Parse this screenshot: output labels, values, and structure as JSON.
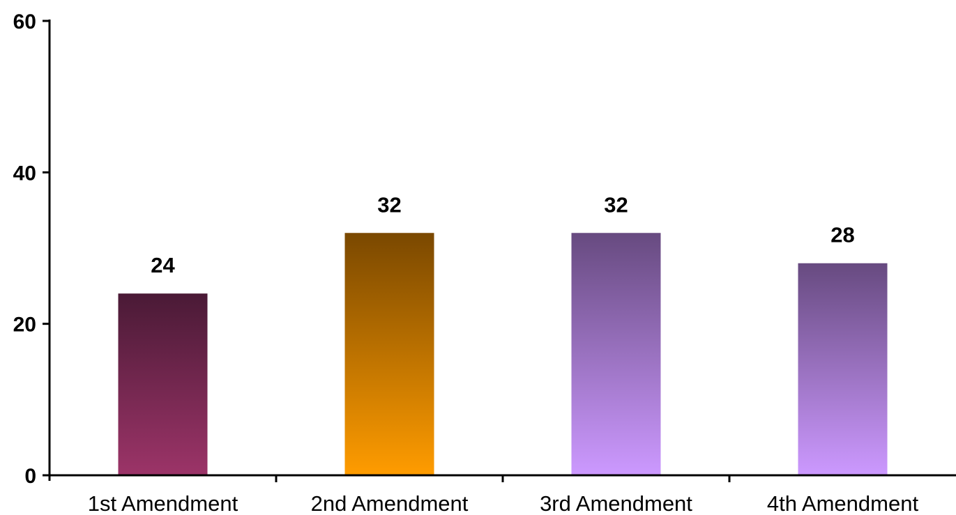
{
  "chart_data": {
    "type": "bar",
    "categories": [
      "1st Amendment",
      "2nd Amendment",
      "3rd Amendment",
      "4th Amendment"
    ],
    "values": [
      24,
      32,
      32,
      28
    ],
    "data_labels": [
      "24",
      "32",
      "32",
      "28"
    ],
    "title": "",
    "xlabel": "",
    "ylabel": "",
    "ylim": [
      0,
      60
    ],
    "yticks": [
      0,
      20,
      40,
      60
    ],
    "ytick_labels": [
      "0",
      "20",
      "40",
      "60"
    ],
    "grid": false,
    "bar_colors": [
      {
        "top": "#4a1a36",
        "bottom": "#9c3468"
      },
      {
        "top": "#7a4800",
        "bottom": "#ff9c00"
      },
      {
        "top": "#674a80",
        "bottom": "#cc99ff"
      },
      {
        "top": "#674a80",
        "bottom": "#cc99ff"
      }
    ]
  }
}
